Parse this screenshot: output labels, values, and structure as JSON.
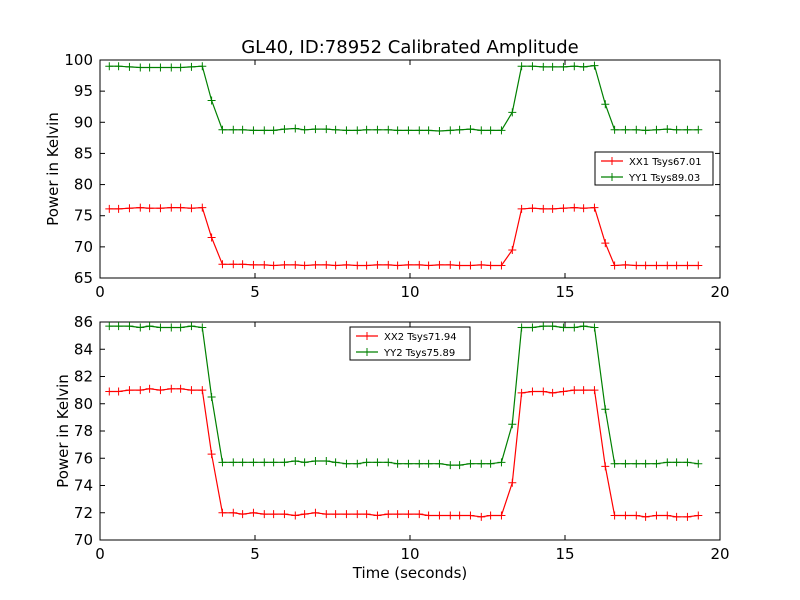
{
  "chart_data": [
    {
      "type": "line",
      "title": "GL40, ID:78952 Calibrated Amplitude",
      "xlabel": "",
      "ylabel": "Power in Kelvin",
      "xlim": [
        0,
        20
      ],
      "ylim": [
        65,
        100
      ],
      "xticks": [
        "0",
        "5",
        "10",
        "15",
        "20"
      ],
      "yticks": [
        "65",
        "70",
        "75",
        "80",
        "85",
        "90",
        "95",
        "100"
      ],
      "legend_position": "center-right",
      "x": [
        0.3,
        0.6,
        0.95,
        1.3,
        1.6,
        1.95,
        2.3,
        2.6,
        2.95,
        3.3,
        3.6,
        3.95,
        4.3,
        4.6,
        4.95,
        5.3,
        5.6,
        5.95,
        6.3,
        6.6,
        6.95,
        7.3,
        7.6,
        7.95,
        8.3,
        8.6,
        8.95,
        9.3,
        9.6,
        9.95,
        10.3,
        10.6,
        10.95,
        11.3,
        11.6,
        11.95,
        12.3,
        12.6,
        12.95,
        13.3,
        13.6,
        13.95,
        14.3,
        14.6,
        14.95,
        15.3,
        15.6,
        15.95,
        16.3,
        16.6,
        16.95,
        17.3,
        17.6,
        17.95,
        18.3,
        18.6,
        18.95,
        19.3
      ],
      "series": [
        {
          "name": "XX1 Tsys67.01",
          "color": "#ff0000",
          "values": [
            76.1,
            76.1,
            76.2,
            76.3,
            76.2,
            76.2,
            76.3,
            76.3,
            76.2,
            76.3,
            71.5,
            67.2,
            67.2,
            67.2,
            67.1,
            67.1,
            67.0,
            67.1,
            67.1,
            67.0,
            67.1,
            67.1,
            67.0,
            67.1,
            67.0,
            67.0,
            67.1,
            67.1,
            67.0,
            67.1,
            67.1,
            67.0,
            67.1,
            67.1,
            67.0,
            67.0,
            67.1,
            67.0,
            67.0,
            69.5,
            76.1,
            76.2,
            76.1,
            76.1,
            76.2,
            76.3,
            76.2,
            76.3,
            70.6,
            67.0,
            67.1,
            67.0,
            67.0,
            67.0,
            67.0,
            67.0,
            67.0,
            67.0
          ]
        },
        {
          "name": "YY1 Tsys89.03",
          "color": "#008000",
          "values": [
            99.0,
            99.0,
            98.9,
            98.8,
            98.8,
            98.8,
            98.8,
            98.8,
            98.9,
            99.0,
            93.5,
            88.8,
            88.8,
            88.8,
            88.7,
            88.7,
            88.7,
            88.9,
            89.0,
            88.8,
            88.9,
            88.9,
            88.8,
            88.7,
            88.7,
            88.8,
            88.8,
            88.8,
            88.7,
            88.7,
            88.7,
            88.7,
            88.6,
            88.7,
            88.8,
            88.9,
            88.7,
            88.7,
            88.7,
            91.6,
            99.0,
            99.0,
            98.9,
            98.9,
            98.9,
            99.0,
            98.9,
            99.1,
            92.9,
            88.8,
            88.8,
            88.8,
            88.7,
            88.8,
            88.9,
            88.8,
            88.8,
            88.8
          ]
        }
      ]
    },
    {
      "type": "line",
      "title": "",
      "xlabel": "Time (seconds)",
      "ylabel": "Power in Kelvin",
      "xlim": [
        0,
        20
      ],
      "ylim": [
        70,
        86
      ],
      "xticks": [
        "0",
        "5",
        "10",
        "15",
        "20"
      ],
      "yticks": [
        "70",
        "72",
        "74",
        "76",
        "78",
        "80",
        "82",
        "84",
        "86"
      ],
      "legend_position": "upper-center",
      "x": [
        0.3,
        0.6,
        0.95,
        1.3,
        1.6,
        1.95,
        2.3,
        2.6,
        2.95,
        3.3,
        3.6,
        3.95,
        4.3,
        4.6,
        4.95,
        5.3,
        5.6,
        5.95,
        6.3,
        6.6,
        6.95,
        7.3,
        7.6,
        7.95,
        8.3,
        8.6,
        8.95,
        9.3,
        9.6,
        9.95,
        10.3,
        10.6,
        10.95,
        11.3,
        11.6,
        11.95,
        12.3,
        12.6,
        12.95,
        13.3,
        13.6,
        13.95,
        14.3,
        14.6,
        14.95,
        15.3,
        15.6,
        15.95,
        16.3,
        16.6,
        16.95,
        17.3,
        17.6,
        17.95,
        18.3,
        18.6,
        18.95,
        19.3
      ],
      "series": [
        {
          "name": "XX2 Tsys71.94",
          "color": "#ff0000",
          "values": [
            80.9,
            80.9,
            81.0,
            81.0,
            81.1,
            81.0,
            81.1,
            81.1,
            81.0,
            81.0,
            76.3,
            72.0,
            72.0,
            71.9,
            72.0,
            71.9,
            71.9,
            71.9,
            71.8,
            71.9,
            72.0,
            71.9,
            71.9,
            71.9,
            71.9,
            71.9,
            71.8,
            71.9,
            71.9,
            71.9,
            71.9,
            71.8,
            71.8,
            71.8,
            71.8,
            71.8,
            71.7,
            71.8,
            71.8,
            74.2,
            80.8,
            80.9,
            80.9,
            80.8,
            80.9,
            81.0,
            81.0,
            81.0,
            75.4,
            71.8,
            71.8,
            71.8,
            71.7,
            71.8,
            71.8,
            71.7,
            71.7,
            71.8
          ]
        },
        {
          "name": "YY2 Tsys75.89",
          "color": "#008000",
          "values": [
            85.7,
            85.7,
            85.7,
            85.6,
            85.7,
            85.6,
            85.6,
            85.6,
            85.7,
            85.6,
            80.5,
            75.7,
            75.7,
            75.7,
            75.7,
            75.7,
            75.7,
            75.7,
            75.8,
            75.7,
            75.8,
            75.8,
            75.7,
            75.6,
            75.6,
            75.7,
            75.7,
            75.7,
            75.6,
            75.6,
            75.6,
            75.6,
            75.6,
            75.5,
            75.5,
            75.6,
            75.6,
            75.6,
            75.7,
            78.5,
            85.6,
            85.6,
            85.7,
            85.7,
            85.6,
            85.6,
            85.7,
            85.6,
            79.6,
            75.6,
            75.6,
            75.6,
            75.6,
            75.6,
            75.7,
            75.7,
            75.7,
            75.6
          ]
        }
      ]
    }
  ]
}
